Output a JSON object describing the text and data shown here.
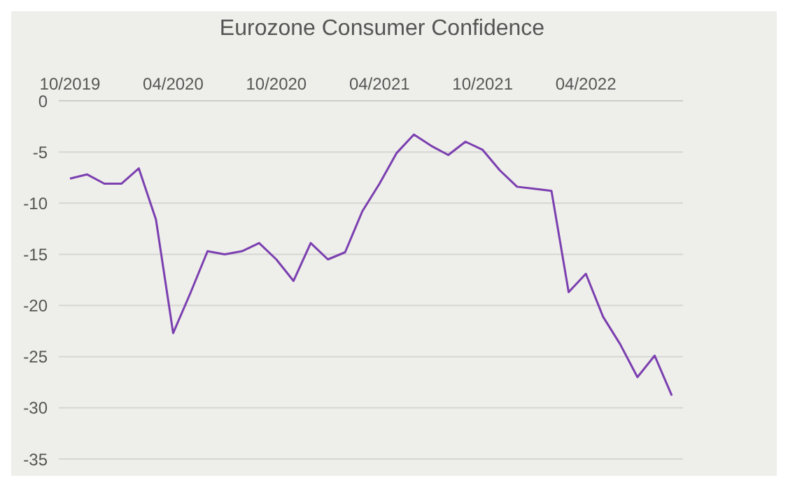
{
  "chart_data": {
    "type": "line",
    "title": "Eurozone Consumer Confidence",
    "categories": [
      "10/2019",
      null,
      null,
      null,
      null,
      null,
      "04/2020",
      null,
      null,
      null,
      null,
      null,
      "10/2020",
      null,
      null,
      null,
      null,
      null,
      "04/2021",
      null,
      null,
      null,
      null,
      null,
      "10/2021",
      null,
      null,
      null,
      null,
      null,
      "04/2022",
      null,
      null,
      null,
      null,
      null
    ],
    "series": [
      {
        "color": "#7b3fb0",
        "values": [
          -7.6,
          -7.2,
          -8.1,
          -8.1,
          -6.6,
          -11.6,
          -22.7,
          -18.8,
          -14.7,
          -15.0,
          -14.7,
          -13.9,
          -15.5,
          -17.6,
          -13.9,
          -15.5,
          -14.8,
          -10.8,
          -8.1,
          -5.1,
          -3.3,
          -4.4,
          -5.3,
          -4.0,
          -4.8,
          -6.8,
          -8.4,
          -8.6,
          -8.8,
          -18.7,
          -16.9,
          -21.1,
          -23.8,
          -27.0,
          -24.9,
          -28.8
        ]
      }
    ],
    "ylim": [
      -35,
      0
    ],
    "yticks": [
      0,
      -5,
      -10,
      -15,
      -20,
      -25,
      -30,
      -35
    ],
    "grid": "y",
    "legend": false,
    "marker": "none",
    "line_style": "solid"
  }
}
